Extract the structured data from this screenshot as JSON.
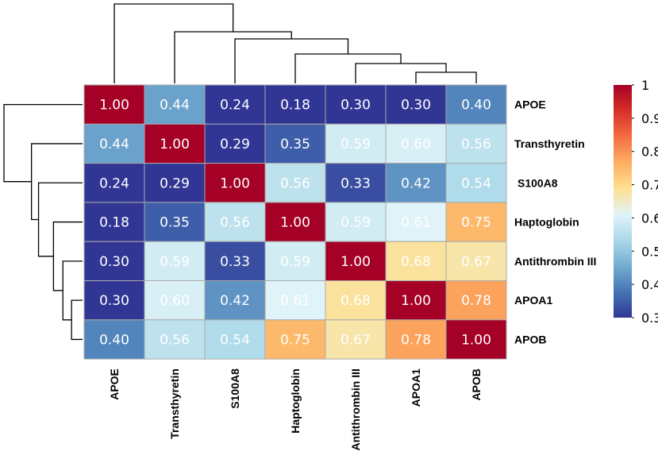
{
  "chart_data": {
    "type": "heatmap",
    "title": "",
    "rows": [
      "APOE",
      "Transthyretin",
      "S100A8",
      "Haptoglobin",
      "Antithrombin III",
      "APOA1",
      "APOB"
    ],
    "columns": [
      "APOE",
      "Transthyretin",
      "S100A8",
      "Haptoglobin",
      "Antithrombin III",
      "APOA1",
      "APOB"
    ],
    "values": [
      [
        1.0,
        0.44,
        0.24,
        0.18,
        0.3,
        0.3,
        0.4
      ],
      [
        0.44,
        1.0,
        0.29,
        0.35,
        0.59,
        0.6,
        0.56
      ],
      [
        0.24,
        0.29,
        1.0,
        0.56,
        0.33,
        0.42,
        0.54
      ],
      [
        0.18,
        0.35,
        0.56,
        1.0,
        0.59,
        0.61,
        0.75
      ],
      [
        0.3,
        0.59,
        0.33,
        0.59,
        1.0,
        0.68,
        0.67
      ],
      [
        0.3,
        0.6,
        0.42,
        0.61,
        0.68,
        1.0,
        0.78
      ],
      [
        0.4,
        0.56,
        0.54,
        0.75,
        0.67,
        0.78,
        1.0
      ]
    ],
    "value_labels": [
      [
        "1.00",
        "0.44",
        "0.24",
        "0.18",
        "0.30",
        "0.30",
        "0.40"
      ],
      [
        "0.44",
        "1.00",
        "0.29",
        "0.35",
        "0.59",
        "0.60",
        "0.56"
      ],
      [
        "0.24",
        "0.29",
        "1.00",
        "0.56",
        "0.33",
        "0.42",
        "0.54"
      ],
      [
        "0.18",
        "0.35",
        "0.56",
        "1.00",
        "0.59",
        "0.61",
        "0.75"
      ],
      [
        "0.30",
        "0.59",
        "0.33",
        "0.59",
        "1.00",
        "0.68",
        "0.67"
      ],
      [
        "0.30",
        "0.60",
        "0.42",
        "0.61",
        "0.68",
        "1.00",
        "0.78"
      ],
      [
        "0.40",
        "0.56",
        "0.54",
        "0.75",
        "0.67",
        "0.78",
        "1.00"
      ]
    ],
    "colorbar": {
      "range": [
        0.3,
        1.0
      ],
      "ticks": [
        0.3,
        0.4,
        0.5,
        0.6,
        0.7,
        0.8,
        0.9,
        1.0
      ],
      "tick_labels": [
        "0.3",
        "0.4",
        "0.5",
        "0.6",
        "0.7",
        "0.8",
        "0.9",
        "1"
      ],
      "colors": [
        "#313695",
        "#4575b4",
        "#74add1",
        "#abd9e9",
        "#e0f3f8",
        "#fee090",
        "#fdae61",
        "#f46d43",
        "#d73027",
        "#a50026"
      ]
    },
    "dendrogram": {
      "order": [
        "APOE",
        "Transthyretin",
        "S100A8",
        "Haptoglobin",
        "Antithrombin III",
        "APOA1",
        "APOB"
      ],
      "merges": [
        {
          "a": 5,
          "b": 6,
          "level": 0.14
        },
        {
          "a": 4,
          "b": 7,
          "level": 0.25
        },
        {
          "a": 3,
          "b": 8,
          "level": 0.37
        },
        {
          "a": 2,
          "b": 9,
          "level": 0.56
        },
        {
          "a": 1,
          "b": 10,
          "level": 0.65
        },
        {
          "a": 0,
          "b": 11,
          "level": 1.0
        }
      ]
    }
  }
}
